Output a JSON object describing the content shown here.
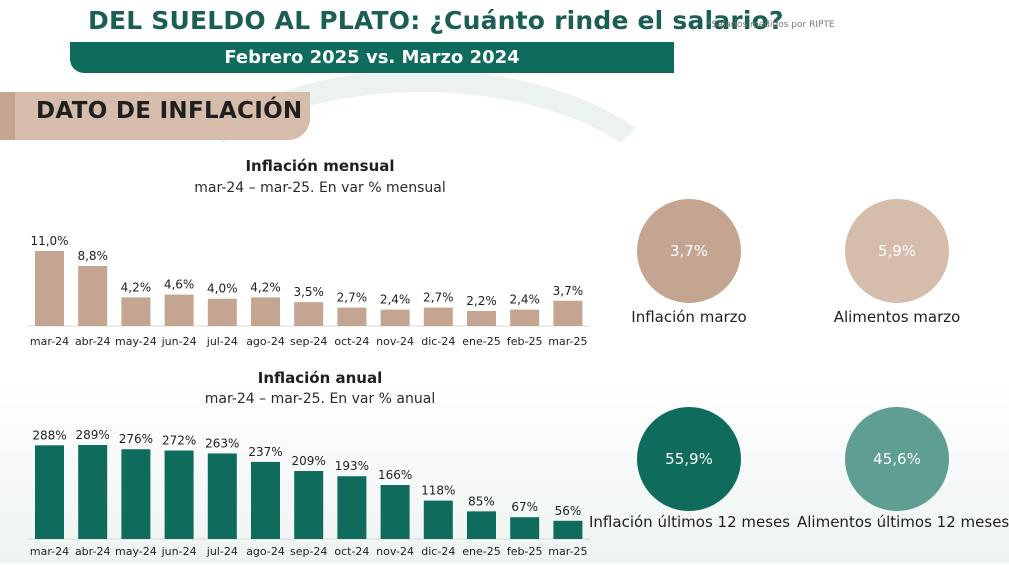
{
  "header": {
    "title": "DEL SUELDO AL PLATO: ¿Cuánto rinde el salario?",
    "subtitle": "Febrero 2025 vs. Marzo 2024",
    "footnote": "*Salarios medidos por RIPTE"
  },
  "section": {
    "title": "DATO DE INFLACIÓN"
  },
  "colors": {
    "brand_green": "#0f6b5c",
    "tan": "#c3a592",
    "tan_light": "#d6bcab",
    "green_light": "#5f9e93"
  },
  "chart_data": [
    {
      "type": "bar",
      "title": "Inflación mensual",
      "subtitle": "mar-24 – mar-25. En var % mensual",
      "categories": [
        "mar-24",
        "abr-24",
        "may-24",
        "jun-24",
        "jul-24",
        "ago-24",
        "sep-24",
        "oct-24",
        "nov-24",
        "dic-24",
        "ene-25",
        "feb-25",
        "mar-25"
      ],
      "values": [
        11.0,
        8.8,
        4.2,
        4.6,
        4.0,
        4.2,
        3.5,
        2.7,
        2.4,
        2.7,
        2.2,
        2.4,
        3.7
      ],
      "value_labels": [
        "11,0%",
        "8,8%",
        "4,2%",
        "4,6%",
        "4,0%",
        "4,2%",
        "3,5%",
        "2,7%",
        "2,4%",
        "2,7%",
        "2,2%",
        "2,4%",
        "3,7%"
      ],
      "ylim": [
        0,
        11.0
      ],
      "color": "#c3a592"
    },
    {
      "type": "bar",
      "title": "Inflación anual",
      "subtitle": "mar-24 – mar-25. En var % anual",
      "categories": [
        "mar-24",
        "abr-24",
        "may-24",
        "jun-24",
        "jul-24",
        "ago-24",
        "sep-24",
        "oct-24",
        "nov-24",
        "dic-24",
        "ene-25",
        "feb-25",
        "mar-25"
      ],
      "values": [
        288,
        289,
        276,
        272,
        263,
        237,
        209,
        193,
        166,
        118,
        85,
        67,
        56
      ],
      "value_labels": [
        "288%",
        "289%",
        "276%",
        "272%",
        "263%",
        "237%",
        "209%",
        "193%",
        "166%",
        "118%",
        "85%",
        "67%",
        "56%"
      ],
      "ylim": [
        0,
        289
      ],
      "color": "#0f6b5c"
    }
  ],
  "kpis": [
    {
      "value": "3,7%",
      "label": "Inflación marzo",
      "color": "#c3a592"
    },
    {
      "value": "5,9%",
      "label": "Alimentos marzo",
      "color": "#d6bcab"
    },
    {
      "value": "55,9%",
      "label": "Inflación últimos 12 meses",
      "color": "#0f6b5c"
    },
    {
      "value": "45,6%",
      "label": "Alimentos últimos 12 meses",
      "color": "#5f9e93"
    }
  ]
}
